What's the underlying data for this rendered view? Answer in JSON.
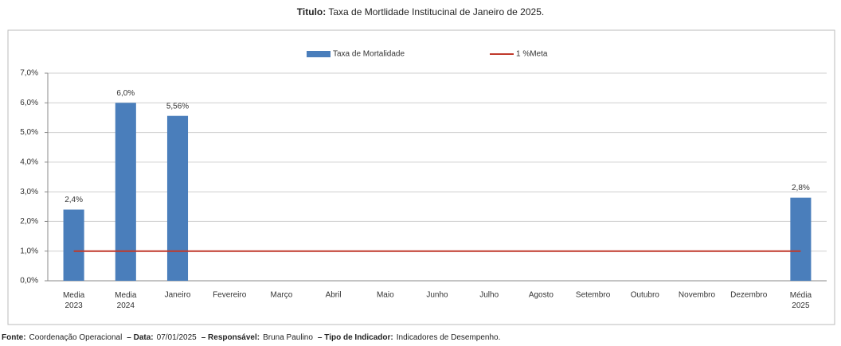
{
  "chart_data": {
    "type": "bar",
    "title_label": "Titulo:",
    "title": "Taxa de Mortlidade Institucinal de Janeiro de 2025.",
    "categories": [
      "Media 2023",
      "Media 2024",
      "Janeiro",
      "Fevereiro",
      "Março",
      "Abril",
      "Maio",
      "Junho",
      "Julho",
      "Agosto",
      "Setembro",
      "Outubro",
      "Novembro",
      "Dezembro",
      "Média 2025"
    ],
    "series": [
      {
        "name": "Taxa de Mortalidade",
        "type": "bar",
        "color": "#4a7ebb",
        "values": [
          2.4,
          6.0,
          5.56,
          null,
          null,
          null,
          null,
          null,
          null,
          null,
          null,
          null,
          null,
          null,
          2.8
        ],
        "value_labels": [
          "2,4%",
          "6,0%",
          "5,56%",
          null,
          null,
          null,
          null,
          null,
          null,
          null,
          null,
          null,
          null,
          null,
          "2,8%"
        ]
      },
      {
        "name": "1 %Meta",
        "type": "line",
        "color": "#c0392b",
        "values": [
          1,
          1,
          1,
          1,
          1,
          1,
          1,
          1,
          1,
          1,
          1,
          1,
          1,
          1,
          1
        ]
      }
    ],
    "ylim": [
      0,
      7
    ],
    "yticks": [
      {
        "value": 0,
        "label": "0,0%"
      },
      {
        "value": 1,
        "label": "1,0%"
      },
      {
        "value": 2,
        "label": "2,0%"
      },
      {
        "value": 3,
        "label": "3,0%"
      },
      {
        "value": 4,
        "label": "4,0%"
      },
      {
        "value": 5,
        "label": "5,0%"
      },
      {
        "value": 6,
        "label": "6,0%"
      },
      {
        "value": 7,
        "label": "7,0%"
      }
    ],
    "grid": true,
    "legend": "top"
  },
  "footer": [
    {
      "label": "Fonte:",
      "text": "Coordenação Operacional"
    },
    {
      "label": "– Data:",
      "text": "07/01/2025"
    },
    {
      "label": "– Responsável:",
      "text": "Bruna Paulino"
    },
    {
      "label": "– Tipo de Indicador:",
      "text": "Indicadores de Desempenho."
    }
  ]
}
